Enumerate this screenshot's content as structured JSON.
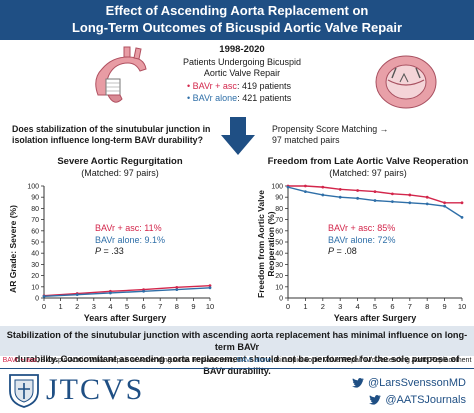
{
  "header": {
    "title_line1": "Effect of Ascending Aorta Replacement on",
    "title_line2": "Long-Term Outcomes of Bicuspid Aortic Valve Repair"
  },
  "study": {
    "years": "1998-2020",
    "population_line1": "Patients Undergoing Bicuspid",
    "population_line2": "Aortic Valve Repair",
    "group1_label": "BAVr + asc",
    "group1_count": ": 419 patients",
    "group2_label": "BAVr alone",
    "group2_count": ": 421 patients",
    "question_line1": "Does stabilization of the sinutubular junction in",
    "question_line2": "isolation influence long-term BAVr durability?",
    "psm_line1": "Propensity Score Matching →",
    "psm_line2": "97 matched pairs"
  },
  "left_panel": {
    "title": "Severe Aortic Regurgitation",
    "subtitle": "(Matched: 97 pairs)",
    "ylabel": "AR Grade: Severe (%)",
    "xlabel": "Years after Surgery",
    "legend_red": "BAVr + asc: 11%",
    "legend_blue": "BAVr alone: 9.1%",
    "p_label": "P",
    "p_value": " = .33"
  },
  "right_panel": {
    "title": "Freedom from Late Aortic Valve Reoperation",
    "subtitle": "(Matched: 97 pairs)",
    "ylabel_line1": "Freedom from Aortic Valve",
    "ylabel_line2": "Reoperation (%)",
    "xlabel": "Years after Surgery",
    "legend_red": "BAVr + asc: 85%",
    "legend_blue": "BAVr alone: 72%",
    "p_label": "P",
    "p_value": " = .08"
  },
  "chart_data": [
    {
      "type": "line",
      "title": "Severe Aortic Regurgitation",
      "ylabel": "AR Grade: Severe (%)",
      "xlabel": "Years after Surgery",
      "xlim": [
        0,
        10
      ],
      "ylim": [
        0,
        100
      ],
      "x_ticks": [
        0,
        1,
        2,
        3,
        4,
        5,
        6,
        7,
        8,
        9,
        10
      ],
      "y_ticks": [
        0,
        10,
        20,
        30,
        40,
        50,
        60,
        70,
        80,
        90,
        100
      ],
      "series": [
        {
          "name": "BAVr + asc",
          "color": "#d3264b",
          "x": [
            0,
            2,
            4,
            6,
            8,
            10
          ],
          "y": [
            2,
            4,
            6,
            7.5,
            9.5,
            11
          ]
        },
        {
          "name": "BAVr alone",
          "color": "#2f6fa8",
          "x": [
            0,
            2,
            4,
            6,
            8,
            10
          ],
          "y": [
            1.5,
            3,
            4.5,
            6,
            7.5,
            9.1
          ]
        }
      ]
    },
    {
      "type": "line",
      "title": "Freedom from Late Aortic Valve Reoperation",
      "ylabel": "Freedom from Aortic Valve Reoperation (%)",
      "xlabel": "Years after Surgery",
      "xlim": [
        0,
        10
      ],
      "ylim": [
        0,
        100
      ],
      "x_ticks": [
        0,
        1,
        2,
        3,
        4,
        5,
        6,
        7,
        8,
        9,
        10
      ],
      "y_ticks": [
        0,
        10,
        20,
        30,
        40,
        50,
        60,
        70,
        80,
        90,
        100
      ],
      "series": [
        {
          "name": "BAVr + asc",
          "color": "#d3264b",
          "x": [
            0,
            1,
            2,
            3,
            4,
            5,
            6,
            7,
            8,
            9,
            10
          ],
          "y": [
            100,
            100,
            99,
            97,
            96,
            95,
            93,
            92,
            90,
            85,
            85
          ]
        },
        {
          "name": "BAVr alone",
          "color": "#2f6fa8",
          "x": [
            0,
            1,
            2,
            3,
            4,
            5,
            6,
            7,
            8,
            9,
            10
          ],
          "y": [
            99,
            95,
            92,
            90,
            89,
            87,
            86,
            85,
            84,
            82,
            72
          ]
        }
      ]
    }
  ],
  "conclusion": {
    "line1": "Stabilization of the sinutubular junction with ascending aorta replacement has minimal influence on long-term BAVr",
    "line2": "durability. Concomitant ascending aorta replacement should not be performed for the sole purpose of BAVr durability."
  },
  "abbreviations": {
    "red_term": "BAVr + asc",
    "red_def": ", Bicuspid Aortic Valve Repair w/ Ascending Aorta Replacement; ",
    "blue_term": "BAVr alone",
    "blue_def": ", Bicuspid Aortic Valve Repair w/o Ascending Aorta Replacement"
  },
  "footer": {
    "brand": "JTCVS",
    "handle1": "@LarsSvenssonMD",
    "handle2": "@AATSJournals"
  },
  "colors": {
    "red": "#d3264b",
    "blue": "#2f6fa8",
    "navy": "#1f4f84"
  }
}
